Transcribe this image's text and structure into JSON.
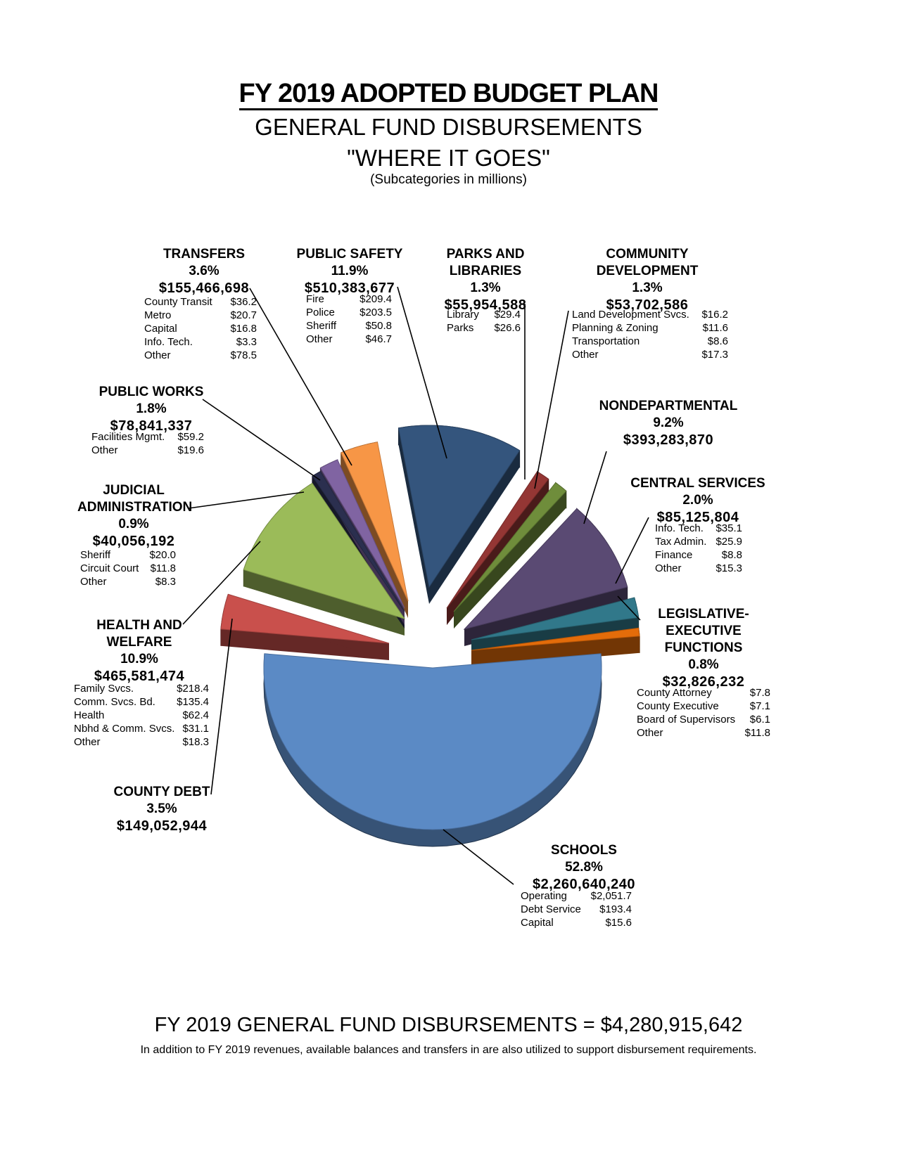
{
  "header": {
    "title": "FY 2019 ADOPTED BUDGET PLAN",
    "subtitle": "GENERAL FUND DISBURSEMENTS",
    "tagline": "\"WHERE IT GOES\"",
    "units_note": "(Subcategories in millions)"
  },
  "footer": {
    "total": "FY 2019 GENERAL FUND DISBURSEMENTS = $4,280,915,642",
    "note": "In addition to FY 2019 revenues, available balances and transfers in are also utilized to support disbursement requirements."
  },
  "chart_data": {
    "type": "pie",
    "slices": [
      {
        "label": "SCHOOLS",
        "pct_label": "52.8%",
        "amount": "$2,260,640,240",
        "value": 52.8,
        "color": "#5b8ac5",
        "sub": [
          [
            "Operating",
            "$2,051.7"
          ],
          [
            "Debt Service",
            "$193.4"
          ],
          [
            "Capital",
            "$15.6"
          ]
        ]
      },
      {
        "label": "COUNTY DEBT",
        "pct_label": "3.5%",
        "amount": "$149,052,944",
        "value": 3.5,
        "color": "#c9504c",
        "sub": []
      },
      {
        "label": "HEALTH AND WELFARE",
        "pct_label": "10.9%",
        "amount": "$465,581,474",
        "value": 10.9,
        "color": "#9bbb59",
        "sub": [
          [
            "Family Svcs.",
            "$218.4"
          ],
          [
            "Comm. Svcs. Bd.",
            "$135.4"
          ],
          [
            "Health",
            "$62.4"
          ],
          [
            "Nbhd & Comm. Svcs.",
            "$31.1"
          ],
          [
            "Other",
            "$18.3"
          ]
        ]
      },
      {
        "label": "JUDICIAL ADMINISTRATION",
        "pct_label": "0.9%",
        "amount": "$40,056,192",
        "value": 0.9,
        "color": "#2b2f4f",
        "sub": [
          [
            "Sheriff",
            "$20.0"
          ],
          [
            "Circuit Court",
            "$11.8"
          ],
          [
            "Other",
            "$8.3"
          ]
        ]
      },
      {
        "label": "PUBLIC WORKS",
        "pct_label": "1.8%",
        "amount": "$78,841,337",
        "value": 1.8,
        "color": "#8064a2",
        "sub": [
          [
            "Facilities Mgmt.",
            "$59.2"
          ],
          [
            "Other",
            "$19.6"
          ]
        ]
      },
      {
        "label": "TRANSFERS",
        "pct_label": "3.6%",
        "amount": "$155,466,698",
        "value": 3.6,
        "color": "#f79646",
        "sub": [
          [
            "County Transit",
            "$36.2"
          ],
          [
            "Metro",
            "$20.7"
          ],
          [
            "Capital",
            "$16.8"
          ],
          [
            "Info. Tech.",
            "$3.3"
          ],
          [
            "Other",
            "$78.5"
          ]
        ]
      },
      {
        "label": "PUBLIC SAFETY",
        "pct_label": "11.9%",
        "amount": "$510,383,677",
        "value": 11.9,
        "color": "#34557d",
        "sub": [
          [
            "Fire",
            "$209.4"
          ],
          [
            "Police",
            "$203.5"
          ],
          [
            "Sheriff",
            "$50.8"
          ],
          [
            "Other",
            "$46.7"
          ]
        ]
      },
      {
        "label": "PARKS AND LIBRARIES",
        "pct_label": "1.3%",
        "amount": "$55,954,588",
        "value": 1.3,
        "color": "#943634",
        "sub": [
          [
            "Library",
            "$29.4"
          ],
          [
            "Parks",
            "$26.6"
          ]
        ]
      },
      {
        "label": "COMMUNITY DEVELOPMENT",
        "pct_label": "1.3%",
        "amount": "$53,702,586",
        "value": 1.3,
        "color": "#6f8d3b",
        "sub": [
          [
            "Land Development Svcs.",
            "$16.2"
          ],
          [
            "Planning & Zoning",
            "$11.6"
          ],
          [
            "Transportation",
            "$8.6"
          ],
          [
            "Other",
            "$17.3"
          ]
        ]
      },
      {
        "label": "NONDEPARTMENTAL",
        "pct_label": "9.2%",
        "amount": "$393,283,870",
        "value": 9.2,
        "color": "#5a4a73",
        "sub": []
      },
      {
        "label": "CENTRAL SERVICES",
        "pct_label": "2.0%",
        "amount": "$85,125,804",
        "value": 2.0,
        "color": "#31788a",
        "sub": [
          [
            "Info. Tech.",
            "$35.1"
          ],
          [
            "Tax Admin.",
            "$25.9"
          ],
          [
            "Finance",
            "$8.8"
          ],
          [
            "Other",
            "$15.3"
          ]
        ]
      },
      {
        "label": "LEGISLATIVE-EXECUTIVE FUNCTIONS",
        "pct_label": "0.8%",
        "amount": "$32,826,232",
        "value": 0.8,
        "color": "#e36c0a",
        "sub": [
          [
            "County Attorney",
            "$7.8"
          ],
          [
            "County Executive",
            "$7.1"
          ],
          [
            "Board of Supervisors",
            "$6.1"
          ],
          [
            "Other",
            "$11.8"
          ]
        ]
      }
    ]
  }
}
